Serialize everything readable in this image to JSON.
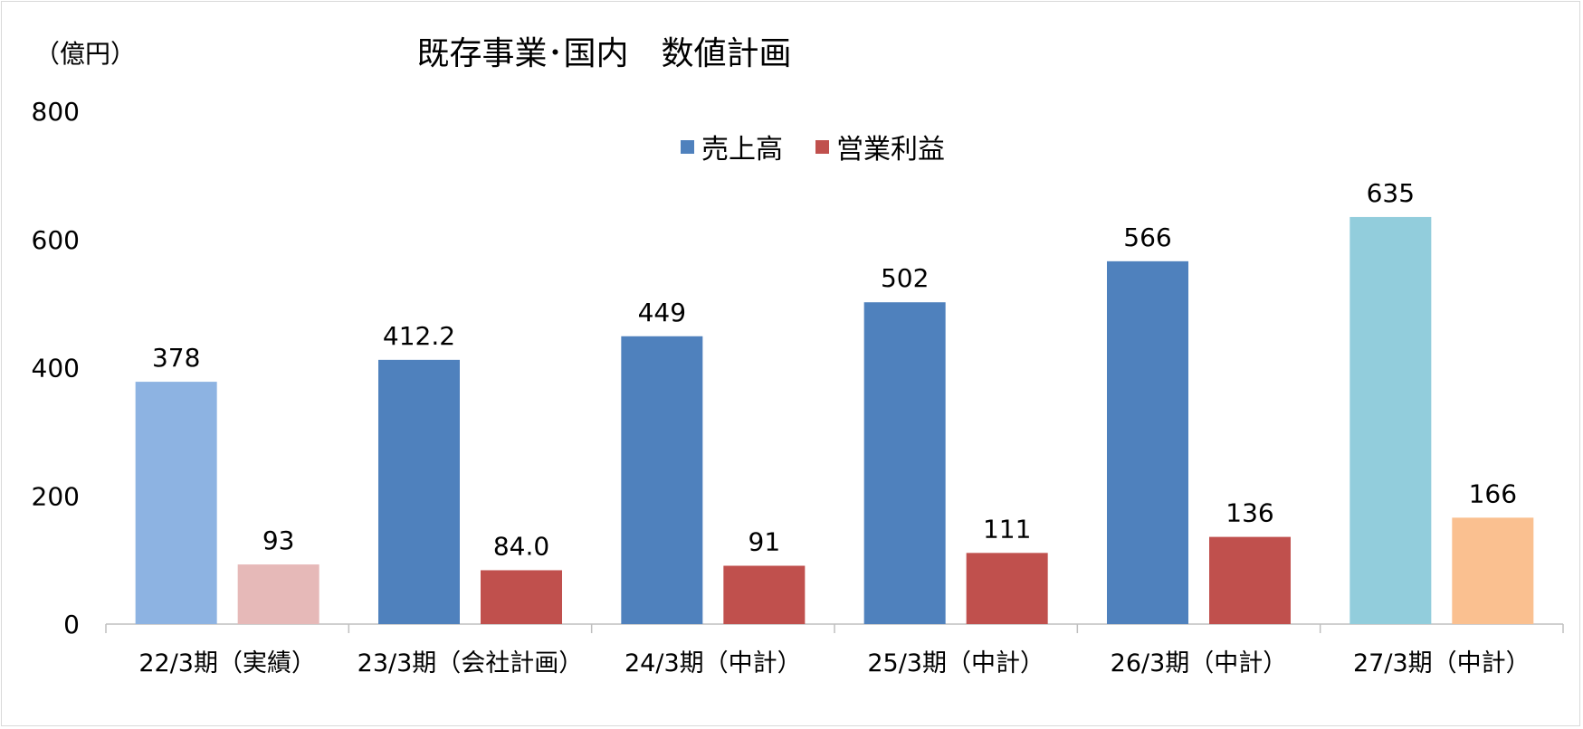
{
  "chart_data": {
    "type": "bar",
    "title": "既存事業･国内　数値計画",
    "unit_label": "（億円）",
    "ylim": [
      0,
      800
    ],
    "yticks": [
      "0",
      "200",
      "400",
      "600",
      "800"
    ],
    "grid": false,
    "legend_position": "top-center",
    "categories": [
      "22/3期（実績）",
      "23/3期（会社計画）",
      "24/3期（中計）",
      "25/3期（中計）",
      "26/3期（中計）",
      "27/3期（中計）"
    ],
    "series": [
      {
        "name": "売上高",
        "color": "#4f81bd",
        "values": [
          378,
          412.2,
          449,
          502,
          566,
          635
        ],
        "labels": [
          "378",
          "412.2",
          "449",
          "502",
          "566",
          "635"
        ],
        "point_colors": [
          "#8db3e2",
          "#4f81bd",
          "#4f81bd",
          "#4f81bd",
          "#4f81bd",
          "#92cddc"
        ]
      },
      {
        "name": "営業利益",
        "color": "#c0504d",
        "values": [
          93,
          84.0,
          91,
          111,
          136,
          166
        ],
        "labels": [
          "93",
          "84.0",
          "91",
          "111",
          "136",
          "166"
        ],
        "point_colors": [
          "#e6b9b8",
          "#c0504d",
          "#c0504d",
          "#c0504d",
          "#c0504d",
          "#fac090"
        ]
      }
    ]
  }
}
